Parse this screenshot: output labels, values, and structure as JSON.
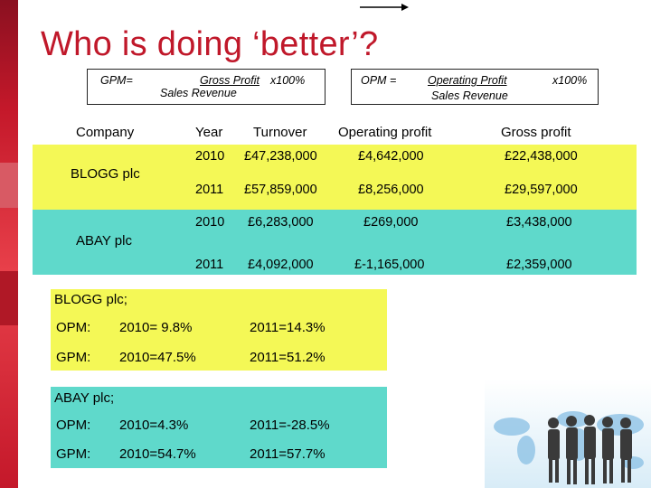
{
  "title": "Who is doing ‘better’?",
  "formulas": {
    "gpm": {
      "label": "GPM=",
      "numerator": "Gross Profit",
      "denominator": "Sales Revenue",
      "multiplier": "x100%"
    },
    "opm": {
      "label": "OPM =",
      "numerator": "Operating Profit",
      "denominator": "Sales Revenue",
      "multiplier": "x100%"
    }
  },
  "table": {
    "headers": {
      "company": "Company",
      "year": "Year",
      "turnover": "Turnover",
      "operating_profit": "Operating profit",
      "gross_profit": "Gross profit"
    },
    "companies": [
      {
        "name": "BLOGG plc",
        "color": "#f4f856",
        "rows": [
          {
            "year": "2010",
            "turnover": "£47,238,000",
            "operating_profit": "£4,642,000",
            "gross_profit": "£22,438,000"
          },
          {
            "year": "2011",
            "turnover": "£57,859,000",
            "operating_profit": "£8,256,000",
            "gross_profit": "£29,597,000"
          }
        ]
      },
      {
        "name": "ABAY plc",
        "color": "#5fd9cb",
        "rows": [
          {
            "year": "2010",
            "turnover": "£6,283,000",
            "operating_profit": "£269,000",
            "gross_profit": "£3,438,000"
          },
          {
            "year": "2011",
            "turnover": "£4,092,000",
            "operating_profit": "£-1,165,000",
            "gross_profit": "£2,359,000"
          }
        ]
      }
    ]
  },
  "summaries": [
    {
      "heading": "BLOGG plc;",
      "opm": {
        "label": "OPM:",
        "v2010": "2010= 9.8%",
        "v2011": "2011=14.3%"
      },
      "gpm": {
        "label": "GPM:",
        "v2010": "2010=47.5%",
        "v2011": "2011=51.2%"
      }
    },
    {
      "heading": "ABAY plc;",
      "opm": {
        "label": "OPM:",
        "v2010": "2010=4.3%",
        "v2011": "2011=-28.5%"
      },
      "gpm": {
        "label": "GPM:",
        "v2010": "2010=54.7%",
        "v2011": "2011=57.7%"
      }
    }
  ],
  "colors": {
    "accent_red": "#c0182a",
    "yellow": "#f4f856",
    "teal": "#5fd9cb"
  },
  "decoration": "business-people-world-map-image"
}
